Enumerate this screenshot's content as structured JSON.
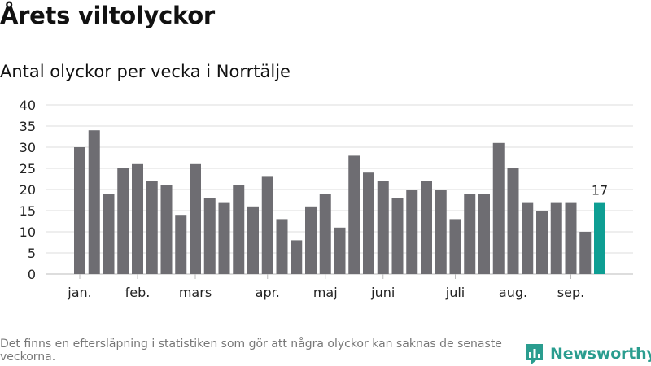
{
  "title": "Årets viltolyckor",
  "subtitle": "Antal olyckor per vecka i Norrtälje",
  "footnote": "Det finns en eftersläpning i statistiken som gör att några olyckor kan saknas de senaste veckorna.",
  "brand": {
    "name": "Newsworthy",
    "icon": "bar-chart-bubble-icon",
    "color": "#2a9d8f"
  },
  "colors": {
    "bar": "#6e6d72",
    "highlight": "#0e9e93",
    "grid": "#dddddd"
  },
  "chart_data": {
    "type": "bar",
    "x_tick_labels": [
      "jan.",
      "feb.",
      "mars",
      "apr.",
      "maj",
      "juni",
      "juli",
      "aug.",
      "sep."
    ],
    "x_tick_at_week_index": [
      0,
      4,
      8,
      13,
      17,
      21,
      26,
      30,
      34
    ],
    "values": [
      30,
      34,
      19,
      25,
      26,
      22,
      21,
      14,
      26,
      18,
      17,
      21,
      16,
      23,
      13,
      8,
      16,
      19,
      11,
      28,
      24,
      22,
      18,
      20,
      22,
      20,
      13,
      19,
      19,
      31,
      25,
      17,
      15,
      17,
      17,
      10,
      17
    ],
    "highlight_last": true,
    "data_labels": [
      {
        "index": 36,
        "text": "17"
      }
    ],
    "ylim": [
      0,
      40
    ],
    "yticks": [
      0,
      5,
      10,
      15,
      20,
      25,
      30,
      35,
      40
    ],
    "grid": true
  }
}
